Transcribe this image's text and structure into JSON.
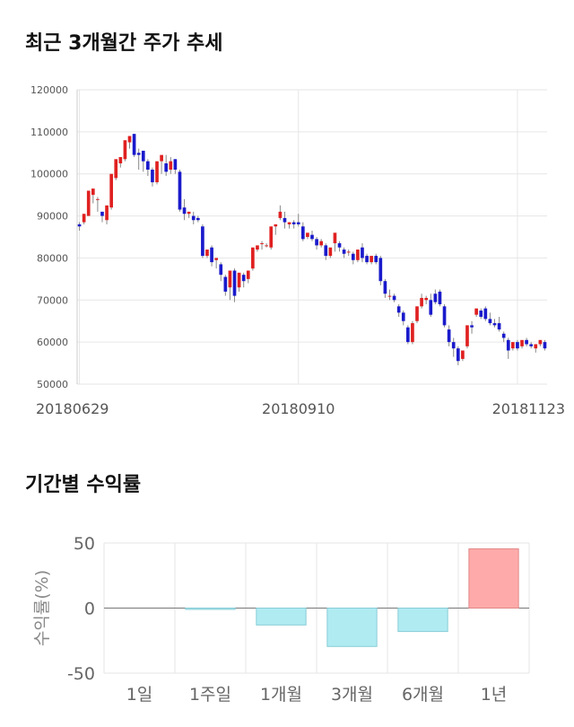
{
  "section1": {
    "title": "최근 3개월간 주가 추세"
  },
  "section2": {
    "title": "기간별 수익률"
  },
  "chart_data": [
    {
      "type": "candlestick",
      "title": "최근 3개월간 주가 추세",
      "ylim": [
        50000,
        120000
      ],
      "y_ticks": [
        "120000",
        "110000",
        "100000",
        "90000",
        "80000",
        "70000",
        "60000",
        "50000"
      ],
      "y_tick_values": [
        120000,
        110000,
        100000,
        90000,
        80000,
        70000,
        60000,
        50000
      ],
      "x_ticks": [
        "20180629",
        "20180910",
        "20181123"
      ],
      "x_tick_indices": [
        0,
        48,
        96
      ],
      "grid": true,
      "colors": {
        "up": "#e02020",
        "down": "#1a1acc",
        "wick": "#888888",
        "grid": "#e6e6e6"
      },
      "candles": [
        [
          88000,
          88500,
          87500,
          86500
        ],
        [
          88500,
          89000,
          90500,
          88000
        ],
        [
          90000,
          91000,
          96000,
          90000
        ],
        [
          95000,
          95000,
          96500,
          93000
        ],
        [
          94000,
          94500,
          94000,
          91000
        ],
        [
          91000,
          91000,
          90000,
          88500
        ],
        [
          89000,
          89000,
          92500,
          88000
        ],
        [
          92000,
          92000,
          100000,
          91500
        ],
        [
          99000,
          99000,
          103500,
          98500
        ],
        [
          102500,
          102500,
          104000,
          101500
        ],
        [
          103500,
          104000,
          108000,
          103000
        ],
        [
          107500,
          107500,
          109000,
          106000
        ],
        [
          109500,
          109500,
          104500,
          104000
        ],
        [
          105000,
          106000,
          104500,
          101000
        ],
        [
          105500,
          105500,
          103000,
          100500
        ],
        [
          103000,
          103500,
          101000,
          99500
        ],
        [
          101000,
          101500,
          98000,
          97000
        ],
        [
          98000,
          98000,
          103000,
          97500
        ],
        [
          103000,
          103000,
          104500,
          100000
        ],
        [
          102500,
          104500,
          100500,
          99500
        ],
        [
          101000,
          104000,
          103000,
          100000
        ],
        [
          103500,
          103500,
          101000,
          100000
        ],
        [
          100500,
          101000,
          91500,
          91000
        ],
        [
          92000,
          94000,
          90500,
          89000
        ],
        [
          90500,
          91000,
          91000,
          89500
        ],
        [
          90000,
          91000,
          89000,
          88000
        ],
        [
          89500,
          90000,
          89000,
          88500
        ],
        [
          87500,
          88000,
          80500,
          80000
        ],
        [
          80500,
          81000,
          82000,
          80000
        ],
        [
          82500,
          83000,
          79000,
          78000
        ],
        [
          79500,
          80000,
          80000,
          77500
        ],
        [
          78500,
          79000,
          76000,
          74500
        ],
        [
          75500,
          76000,
          72000,
          71000
        ],
        [
          73000,
          77000,
          77000,
          70000
        ],
        [
          77000,
          77500,
          71000,
          69500
        ],
        [
          73000,
          73500,
          76500,
          72000
        ],
        [
          76000,
          76500,
          74500,
          73000
        ],
        [
          75000,
          75500,
          77000,
          74000
        ],
        [
          77500,
          78000,
          82500,
          77000
        ],
        [
          82000,
          82500,
          83000,
          81500
        ],
        [
          83500,
          84000,
          83500,
          82000
        ],
        [
          83000,
          83500,
          83000,
          82500
        ],
        [
          82500,
          83000,
          87500,
          82000
        ],
        [
          87500,
          88000,
          88000,
          85500
        ],
        [
          89500,
          92500,
          91000,
          89000
        ],
        [
          89500,
          91000,
          88500,
          87000
        ],
        [
          88000,
          88500,
          88500,
          87000
        ],
        [
          88500,
          89000,
          88000,
          87000
        ],
        [
          88500,
          90500,
          88000,
          87500
        ],
        [
          87500,
          88500,
          84500,
          84000
        ],
        [
          85000,
          85500,
          86000,
          84500
        ],
        [
          85500,
          86500,
          84500,
          84000
        ],
        [
          84500,
          85000,
          83000,
          82000
        ],
        [
          83000,
          84500,
          84000,
          82500
        ],
        [
          83000,
          83500,
          80500,
          79500
        ],
        [
          80500,
          81000,
          82500,
          80000
        ],
        [
          83500,
          85500,
          86000,
          81500
        ],
        [
          83500,
          84000,
          82500,
          81500
        ],
        [
          82000,
          82500,
          81000,
          80000
        ],
        [
          81500,
          82000,
          81500,
          80500
        ],
        [
          81000,
          81500,
          79500,
          78500
        ],
        [
          79500,
          80000,
          82000,
          79000
        ],
        [
          82500,
          83500,
          80000,
          79000
        ],
        [
          80500,
          81000,
          79000,
          78500
        ],
        [
          79000,
          80500,
          80500,
          78500
        ],
        [
          80500,
          81000,
          79000,
          78500
        ],
        [
          80000,
          80500,
          74500,
          73500
        ],
        [
          74500,
          75000,
          71500,
          70500
        ],
        [
          71000,
          72500,
          71000,
          70000
        ],
        [
          71000,
          71500,
          70000,
          69500
        ],
        [
          68500,
          69000,
          67000,
          66000
        ],
        [
          67000,
          67500,
          65000,
          64000
        ],
        [
          63500,
          64000,
          60000,
          59500
        ],
        [
          60000,
          65000,
          64500,
          59500
        ],
        [
          65000,
          65500,
          68500,
          64500
        ],
        [
          68500,
          71500,
          70500,
          68000
        ],
        [
          70000,
          71000,
          70500,
          69000
        ],
        [
          70000,
          71500,
          66500,
          66000
        ],
        [
          71500,
          72500,
          69500,
          69000
        ],
        [
          72000,
          72500,
          69000,
          68500
        ],
        [
          68500,
          69000,
          64000,
          63500
        ],
        [
          63000,
          64000,
          60000,
          59000
        ],
        [
          60000,
          61000,
          58500,
          56500
        ],
        [
          58500,
          59000,
          55500,
          54500
        ],
        [
          56000,
          58000,
          58000,
          55500
        ],
        [
          59000,
          60500,
          64000,
          58500
        ],
        [
          64000,
          65000,
          63500,
          62000
        ],
        [
          66500,
          67000,
          68000,
          66000
        ],
        [
          67500,
          68000,
          66000,
          65500
        ],
        [
          68000,
          68500,
          65500,
          65000
        ],
        [
          65500,
          67000,
          64500,
          64000
        ],
        [
          64500,
          65500,
          64000,
          63500
        ],
        [
          64500,
          66000,
          63000,
          62500
        ],
        [
          62000,
          62500,
          61000,
          60000
        ],
        [
          60500,
          61000,
          58000,
          56000
        ],
        [
          58500,
          59500,
          60000,
          58000
        ],
        [
          60000,
          60500,
          58500,
          58000
        ],
        [
          59000,
          59500,
          60500,
          58500
        ],
        [
          60500,
          61000,
          59500,
          59000
        ],
        [
          59500,
          60000,
          59000,
          58500
        ],
        [
          58500,
          59000,
          59500,
          57500
        ],
        [
          59500,
          60000,
          60500,
          59000
        ],
        [
          60000,
          60500,
          58500,
          58000
        ]
      ]
    },
    {
      "type": "bar",
      "title": "기간별 수익률",
      "ylabel": "수익률(%)",
      "ylim": [
        -50,
        50
      ],
      "y_ticks": [
        "50",
        "0",
        "-50"
      ],
      "y_tick_values": [
        50,
        0,
        -50
      ],
      "categories": [
        "1일",
        "1주일",
        "1개월",
        "3개월",
        "6개월",
        "1년"
      ],
      "values": [
        0.0,
        -1.0,
        -13.0,
        -29.5,
        -18.0,
        45.5
      ],
      "colors": {
        "positive": "#ffaaaa",
        "positive_edge": "#e08888",
        "negative": "#b0ebf2",
        "negative_edge": "#88ccd6",
        "grid": "#e6e6e6",
        "zero": "#777777"
      }
    }
  ]
}
